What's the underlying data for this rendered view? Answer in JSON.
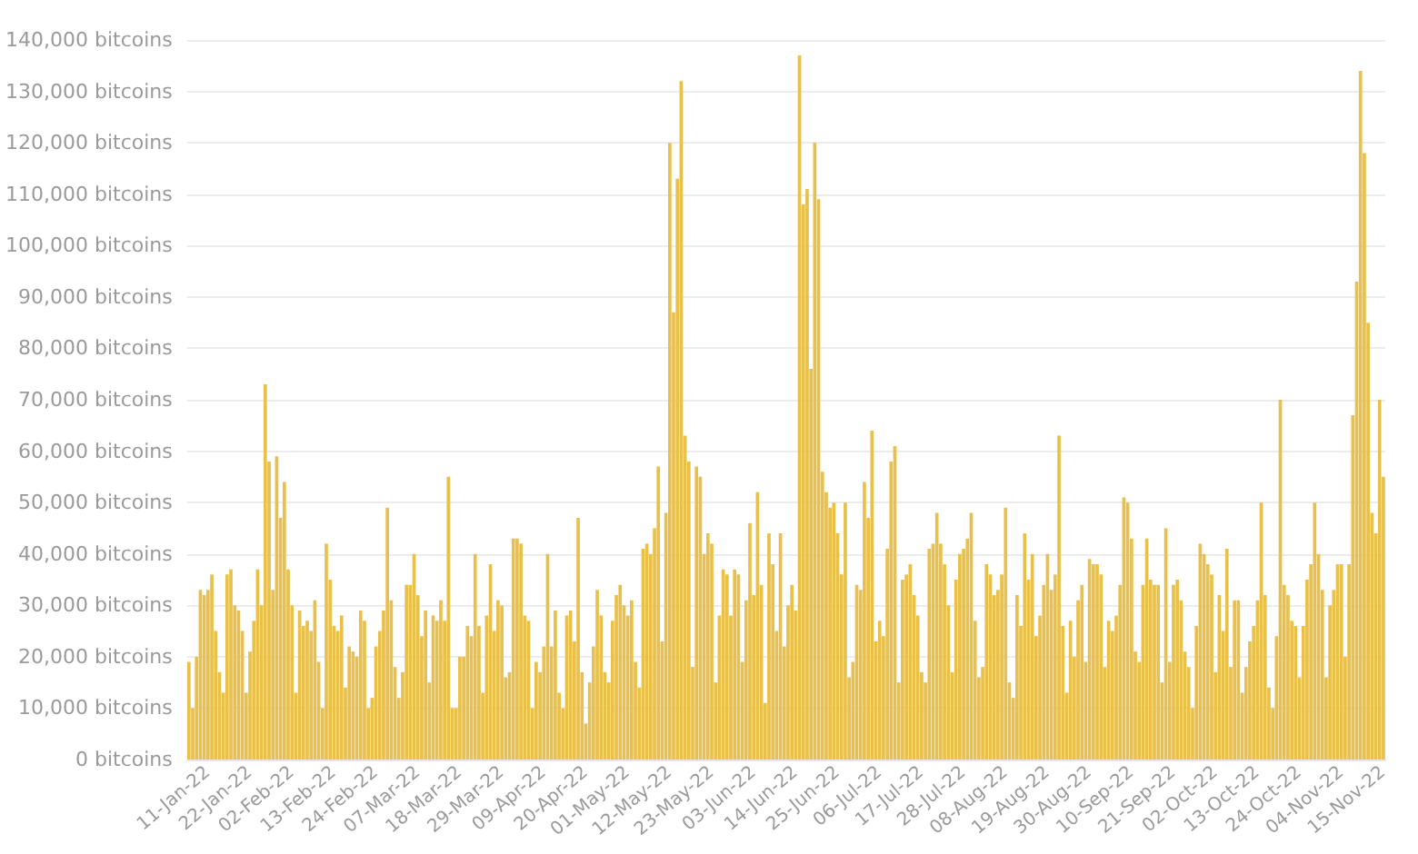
{
  "chart_data": {
    "type": "bar",
    "categories": [
      null,
      null,
      null,
      null,
      null,
      "11-Jan-22",
      null,
      null,
      null,
      null,
      null,
      null,
      null,
      null,
      null,
      null,
      "22-Jan-22",
      null,
      null,
      null,
      null,
      null,
      null,
      null,
      null,
      null,
      null,
      "02-Feb-22",
      null,
      null,
      null,
      null,
      null,
      null,
      null,
      null,
      null,
      null,
      "13-Feb-22",
      null,
      null,
      null,
      null,
      null,
      null,
      null,
      null,
      null,
      null,
      "24-Feb-22",
      null,
      null,
      null,
      null,
      null,
      null,
      null,
      null,
      null,
      null,
      "07-Mar-22",
      null,
      null,
      null,
      null,
      null,
      null,
      null,
      null,
      null,
      null,
      "18-Mar-22",
      null,
      null,
      null,
      null,
      null,
      null,
      null,
      null,
      null,
      null,
      "29-Mar-22",
      null,
      null,
      null,
      null,
      null,
      null,
      null,
      null,
      null,
      null,
      "09-Apr-22",
      null,
      null,
      null,
      null,
      null,
      null,
      null,
      null,
      null,
      null,
      "20-Apr-22",
      null,
      null,
      null,
      null,
      null,
      null,
      null,
      null,
      null,
      null,
      "01-May-22",
      null,
      null,
      null,
      null,
      null,
      null,
      null,
      null,
      null,
      null,
      "12-May-22",
      null,
      null,
      null,
      null,
      null,
      null,
      null,
      null,
      null,
      null,
      "23-May-22",
      null,
      null,
      null,
      null,
      null,
      null,
      null,
      null,
      null,
      null,
      "03-Jun-22",
      null,
      null,
      null,
      null,
      null,
      null,
      null,
      null,
      null,
      null,
      "14-Jun-22",
      null,
      null,
      null,
      null,
      null,
      null,
      null,
      null,
      null,
      null,
      "25-Jun-22",
      null,
      null,
      null,
      null,
      null,
      null,
      null,
      null,
      null,
      null,
      "06-Jul-22",
      null,
      null,
      null,
      null,
      null,
      null,
      null,
      null,
      null,
      null,
      "17-Jul-22",
      null,
      null,
      null,
      null,
      null,
      null,
      null,
      null,
      null,
      null,
      "28-Jul-22",
      null,
      null,
      null,
      null,
      null,
      null,
      null,
      null,
      null,
      null,
      "08-Aug-22",
      null,
      null,
      null,
      null,
      null,
      null,
      null,
      null,
      null,
      null,
      "19-Aug-22",
      null,
      null,
      null,
      null,
      null,
      null,
      null,
      null,
      null,
      null,
      "30-Aug-22",
      null,
      null,
      null,
      null,
      null,
      null,
      null,
      null,
      null,
      null,
      "10-Sep-22",
      null,
      null,
      null,
      null,
      null,
      null,
      null,
      null,
      null,
      null,
      "21-Sep-22",
      null,
      null,
      null,
      null,
      null,
      null,
      null,
      null,
      null,
      null,
      "02-Oct-22",
      null,
      null,
      null,
      null,
      null,
      null,
      null,
      null,
      null,
      null,
      "13-Oct-22",
      null,
      null,
      null,
      null,
      null,
      null,
      null,
      null,
      null,
      null,
      "24-Oct-22",
      null,
      null,
      null,
      null,
      null,
      null,
      null,
      null,
      null,
      null,
      "04-Nov-22",
      null,
      null,
      null,
      null,
      null,
      null,
      null,
      null,
      null,
      null,
      "15-Nov-22"
    ],
    "values": [
      19000,
      10000,
      20000,
      33000,
      32000,
      33000,
      36000,
      25000,
      17000,
      13000,
      36000,
      37000,
      30000,
      29000,
      25000,
      13000,
      21000,
      27000,
      37000,
      30000,
      73000,
      58000,
      33000,
      59000,
      47000,
      54000,
      37000,
      30000,
      13000,
      29000,
      26000,
      27000,
      25000,
      31000,
      19000,
      10000,
      42000,
      35000,
      26000,
      25000,
      28000,
      14000,
      22000,
      21000,
      20000,
      29000,
      27000,
      10000,
      12000,
      22000,
      25000,
      29000,
      49000,
      31000,
      18000,
      12000,
      17000,
      34000,
      34000,
      40000,
      32000,
      24000,
      29000,
      15000,
      28000,
      27000,
      31000,
      27000,
      55000,
      10000,
      10000,
      20000,
      20000,
      26000,
      24000,
      40000,
      26000,
      13000,
      28000,
      38000,
      25000,
      31000,
      30000,
      16000,
      17000,
      43000,
      43000,
      42000,
      28000,
      27000,
      10000,
      19000,
      17000,
      22000,
      40000,
      22000,
      29000,
      13000,
      10000,
      28000,
      29000,
      23000,
      47000,
      17000,
      7000,
      15000,
      22000,
      33000,
      28000,
      17000,
      15000,
      27000,
      32000,
      34000,
      30000,
      28000,
      31000,
      19000,
      14000,
      41000,
      42000,
      40000,
      45000,
      57000,
      23000,
      48000,
      120000,
      87000,
      113000,
      132000,
      63000,
      58000,
      18000,
      57000,
      55000,
      40000,
      44000,
      42000,
      15000,
      28000,
      37000,
      36000,
      28000,
      37000,
      36000,
      19000,
      31000,
      46000,
      32000,
      52000,
      34000,
      11000,
      44000,
      38000,
      25000,
      44000,
      22000,
      30000,
      34000,
      29000,
      137000,
      108000,
      111000,
      76000,
      120000,
      109000,
      56000,
      52000,
      49000,
      50000,
      44000,
      36000,
      50000,
      16000,
      19000,
      34000,
      33000,
      54000,
      47000,
      64000,
      23000,
      27000,
      24000,
      41000,
      58000,
      61000,
      15000,
      35000,
      36000,
      38000,
      32000,
      28000,
      17000,
      15000,
      41000,
      42000,
      48000,
      42000,
      38000,
      30000,
      17000,
      35000,
      40000,
      41000,
      43000,
      48000,
      27000,
      16000,
      18000,
      38000,
      36000,
      32000,
      33000,
      36000,
      49000,
      15000,
      12000,
      32000,
      26000,
      44000,
      35000,
      40000,
      24000,
      28000,
      34000,
      40000,
      33000,
      36000,
      63000,
      26000,
      13000,
      27000,
      20000,
      31000,
      34000,
      19000,
      39000,
      38000,
      38000,
      36000,
      18000,
      27000,
      25000,
      28000,
      34000,
      51000,
      50000,
      43000,
      21000,
      19000,
      34000,
      43000,
      35000,
      34000,
      34000,
      15000,
      45000,
      19000,
      34000,
      35000,
      31000,
      21000,
      18000,
      10000,
      26000,
      42000,
      40000,
      38000,
      36000,
      17000,
      32000,
      25000,
      41000,
      18000,
      31000,
      31000,
      13000,
      18000,
      23000,
      26000,
      31000,
      50000,
      32000,
      14000,
      10000,
      24000,
      70000,
      34000,
      32000,
      27000,
      26000,
      16000,
      26000,
      35000,
      38000,
      50000,
      40000,
      33000,
      16000,
      30000,
      33000,
      38000,
      38000,
      20000,
      38000,
      67000,
      93000,
      134000,
      118000,
      85000,
      48000,
      44000,
      70000,
      55000
    ],
    "color": "#e8c04a",
    "ylim": [
      0,
      140000
    ],
    "yticks": [
      {
        "value": 0,
        "label": "0 bitcoins"
      },
      {
        "value": 10000,
        "label": "10,000 bitcoins"
      },
      {
        "value": 20000,
        "label": "20,000 bitcoins"
      },
      {
        "value": 30000,
        "label": "30,000 bitcoins"
      },
      {
        "value": 40000,
        "label": "40,000 bitcoins"
      },
      {
        "value": 50000,
        "label": "50,000 bitcoins"
      },
      {
        "value": 60000,
        "label": "60,000 bitcoins"
      },
      {
        "value": 70000,
        "label": "70,000 bitcoins"
      },
      {
        "value": 80000,
        "label": "80,000 bitcoins"
      },
      {
        "value": 90000,
        "label": "90,000 bitcoins"
      },
      {
        "value": 100000,
        "label": "100,000 bitcoins"
      },
      {
        "value": 110000,
        "label": "110,000 bitcoins"
      },
      {
        "value": 120000,
        "label": "120,000 bitcoins"
      },
      {
        "value": 130000,
        "label": "130,000 bitcoins"
      },
      {
        "value": 140000,
        "label": "140,000 bitcoins"
      }
    ],
    "grid": "y"
  }
}
